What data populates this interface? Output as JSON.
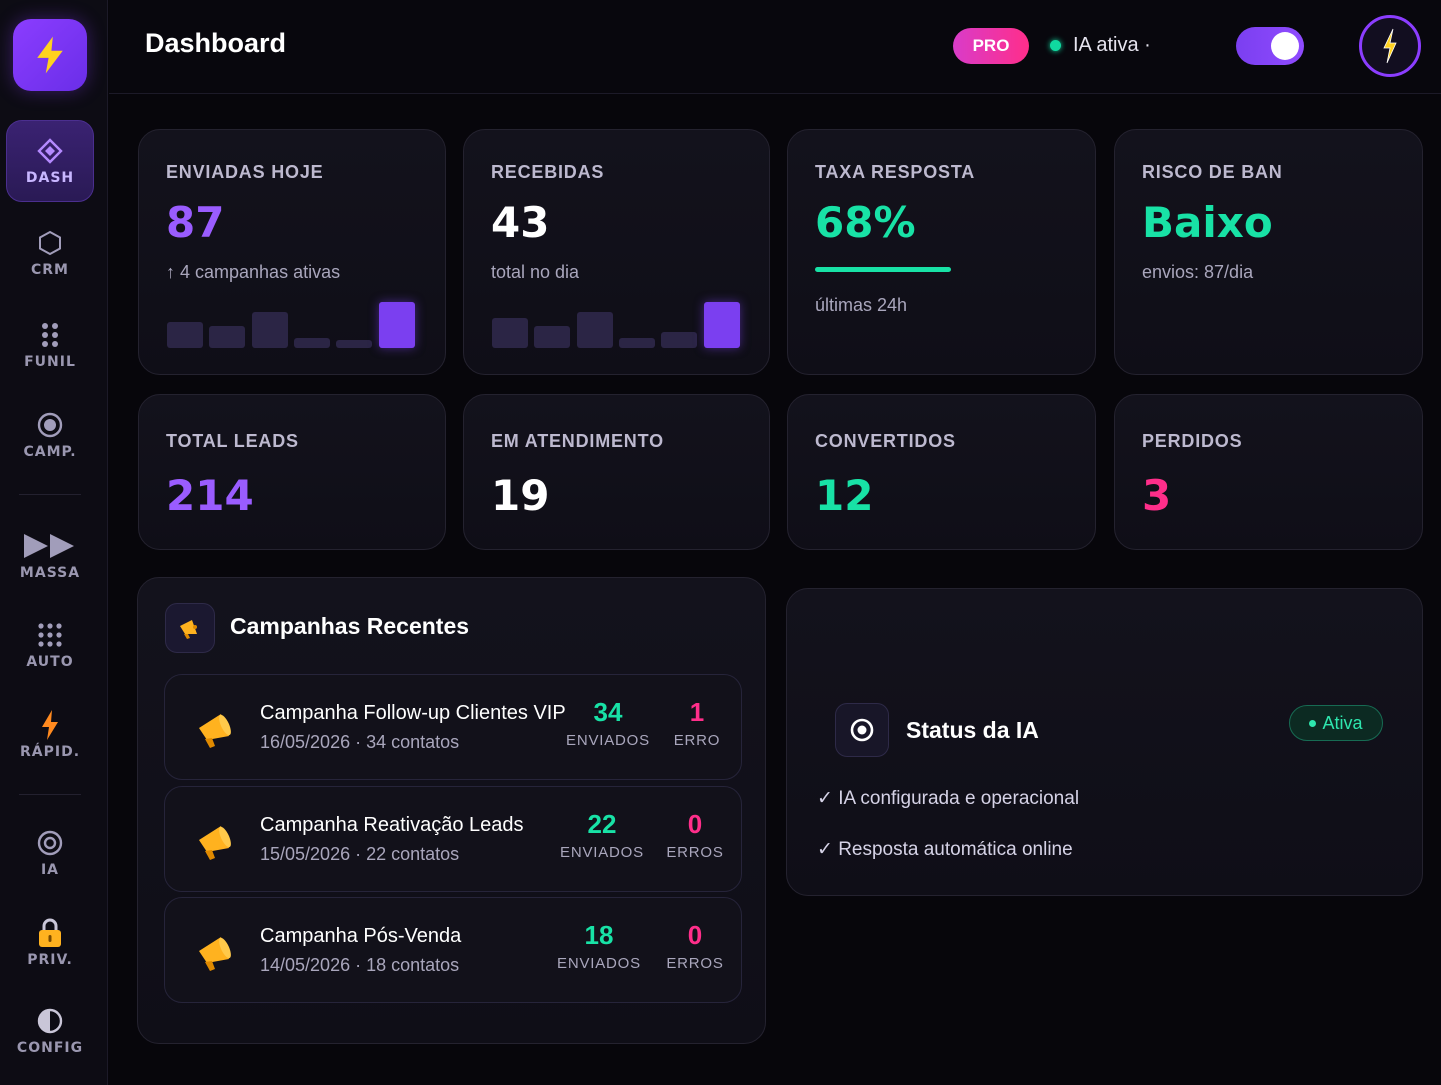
{
  "app": {
    "title": "Dashboard"
  },
  "header": {
    "title": "Dashboard",
    "plan_badge": "PRO",
    "ia_status": "IA ativa ·",
    "toggle_on": true
  },
  "sidebar": {
    "items": [
      {
        "label": "DASH",
        "icon": "diamond-icon",
        "active": true
      },
      {
        "label": "CRM",
        "icon": "hexagon-icon"
      },
      {
        "label": "FUNIL",
        "icon": "dots-grid-icon"
      },
      {
        "label": "CAMP.",
        "icon": "target-icon"
      },
      {
        "label": "MASSA",
        "icon": "fast-forward-icon"
      },
      {
        "label": "AUTO",
        "icon": "dots-grid-icon"
      },
      {
        "label": "RÁPID.",
        "icon": "lightning-icon"
      },
      {
        "label": "IA",
        "icon": "target-icon"
      },
      {
        "label": "PRIV.",
        "icon": "lock-icon"
      },
      {
        "label": "CONFIG",
        "icon": "half-circle-icon"
      }
    ]
  },
  "metrics": {
    "enviadas": {
      "label": "ENVIADAS HOJE",
      "value": "87",
      "sub": "↑ 4 campanhas ativas",
      "spark": [
        26,
        22,
        36,
        10,
        8,
        46
      ]
    },
    "recebidas": {
      "label": "RECEBIDAS",
      "value": "43",
      "sub": "total no dia",
      "spark": [
        30,
        22,
        36,
        10,
        16,
        46
      ]
    },
    "taxa": {
      "label": "TAXA RESPOSTA",
      "value": "68%",
      "sub": "últimas 24h",
      "progress": 0.68
    },
    "risco": {
      "label": "RISCO DE BAN",
      "value": "Baixo",
      "sub": "envios: 87/dia"
    },
    "total_leads": {
      "label": "TOTAL LEADS",
      "value": "214"
    },
    "atendimento": {
      "label": "EM ATENDIMENTO",
      "value": "19"
    },
    "convertidos": {
      "label": "CONVERTIDOS",
      "value": "12"
    },
    "perdidos": {
      "label": "PERDIDOS",
      "value": "3"
    }
  },
  "campaigns": {
    "title": "Campanhas Recentes",
    "rows": [
      {
        "name": "Campanha Follow-up Clientes VIP",
        "meta": "16/05/2026 · 34 contatos",
        "sent": "34",
        "sent_label": "ENVIADOS",
        "errors": "1",
        "errors_label": "ERRO"
      },
      {
        "name": "Campanha Reativação Leads",
        "meta": "15/05/2026 · 22 contatos",
        "sent": "22",
        "sent_label": "ENVIADOS",
        "errors": "0",
        "errors_label": "ERROS"
      },
      {
        "name": "Campanha Pós-Venda",
        "meta": "14/05/2026 · 18 contatos",
        "sent": "18",
        "sent_label": "ENVIADOS",
        "errors": "0",
        "errors_label": "ERROS"
      }
    ]
  },
  "ia_panel": {
    "title": "Status da IA",
    "badge": "Ativa",
    "checks": [
      "✓ IA configurada e operacional",
      "✓ Resposta automática online"
    ]
  },
  "colors": {
    "accent": "#8b3dff",
    "green": "#18e2a6",
    "pink": "#ff2e8a"
  }
}
